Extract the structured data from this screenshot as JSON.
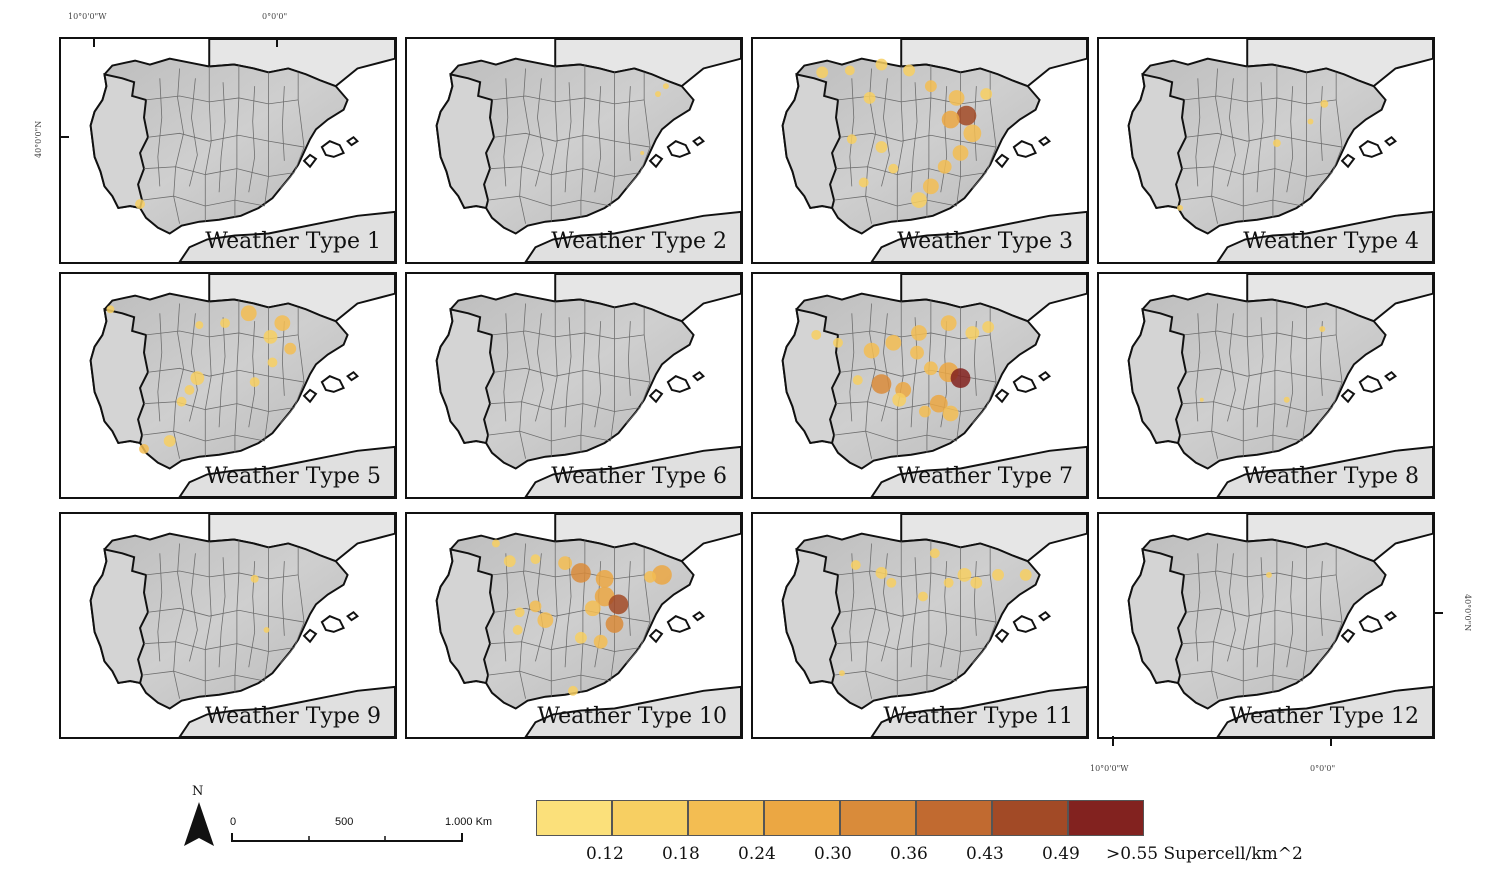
{
  "coords": {
    "top_lon_w": "10°0'0\"W",
    "top_lon_0": "0°0'0\"",
    "left_lat": "40°0'0\"N",
    "bottom_lon_w": "10°0'0\"W",
    "bottom_lon_0": "0°0'0\"",
    "right_lat": "40°0'0\"N"
  },
  "panels": [
    {
      "label": "Weather Type 1"
    },
    {
      "label": "Weather Type 2"
    },
    {
      "label": "Weather Type 3"
    },
    {
      "label": "Weather Type 4"
    },
    {
      "label": "Weather Type 5"
    },
    {
      "label": "Weather Type 6"
    },
    {
      "label": "Weather Type 7"
    },
    {
      "label": "Weather Type 8"
    },
    {
      "label": "Weather Type 9"
    },
    {
      "label": "Weather Type 10"
    },
    {
      "label": "Weather Type 11"
    },
    {
      "label": "Weather Type 12"
    }
  ],
  "north_arrow": {
    "label": "N"
  },
  "scalebar": {
    "ticks": [
      "0",
      "500",
      "1.000 Km"
    ]
  },
  "legend": {
    "colors": [
      "#fbe07a",
      "#f7cf62",
      "#f3bd52",
      "#eba743",
      "#d98b3a",
      "#c16a30",
      "#a24a26",
      "#82221f"
    ],
    "labels": [
      "0.12",
      "0.18",
      "0.24",
      "0.30",
      "0.36",
      "0.43",
      "0.49",
      ">0.55 Supercell/km^2"
    ]
  }
}
